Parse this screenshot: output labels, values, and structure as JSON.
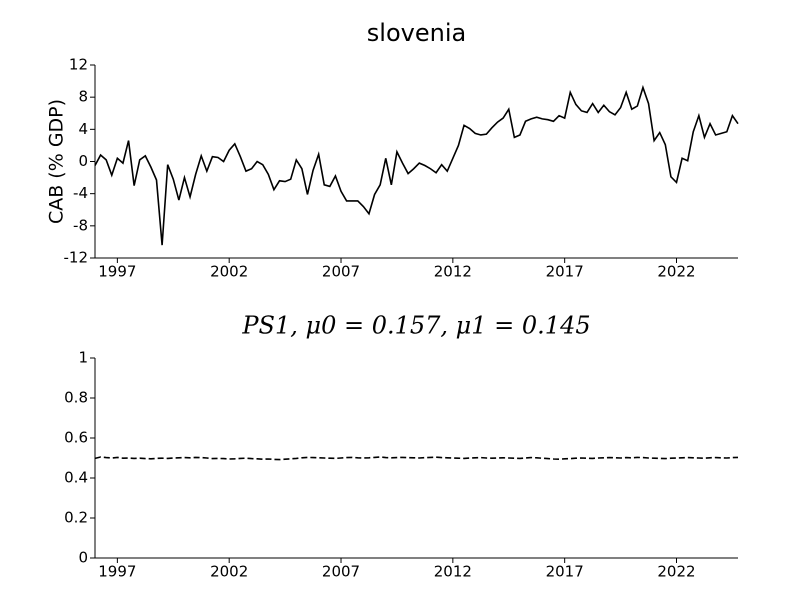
{
  "chart_data": [
    {
      "type": "line",
      "title": "slovenia",
      "ylabel": "CAB (% GDP)",
      "color": "#000000",
      "linestyle": "solid",
      "xlim": [
        1996,
        2024.75
      ],
      "xticks": [
        1997,
        2002,
        2007,
        2012,
        2017,
        2022
      ],
      "ylim": [
        -12,
        12
      ],
      "yticks": [
        -12,
        -8,
        -4,
        0,
        4,
        8,
        12
      ],
      "x": [
        1996,
        1996.25,
        1996.5,
        1996.75,
        1997,
        1997.25,
        1997.5,
        1997.75,
        1998,
        1998.25,
        1998.5,
        1998.75,
        1999,
        1999.25,
        1999.5,
        1999.75,
        2000,
        2000.25,
        2000.5,
        2000.75,
        2001,
        2001.25,
        2001.5,
        2001.75,
        2002,
        2002.25,
        2002.5,
        2002.75,
        2003,
        2003.25,
        2003.5,
        2003.75,
        2004,
        2004.25,
        2004.5,
        2004.75,
        2005,
        2005.25,
        2005.5,
        2005.75,
        2006,
        2006.25,
        2006.5,
        2006.75,
        2007,
        2007.25,
        2007.5,
        2007.75,
        2008,
        2008.25,
        2008.5,
        2008.75,
        2009,
        2009.25,
        2009.5,
        2009.75,
        2010,
        2010.25,
        2010.5,
        2010.75,
        2011,
        2011.25,
        2011.5,
        2011.75,
        2012,
        2012.25,
        2012.5,
        2012.75,
        2013,
        2013.25,
        2013.5,
        2013.75,
        2014,
        2014.25,
        2014.5,
        2014.75,
        2015,
        2015.25,
        2015.5,
        2015.75,
        2016,
        2016.25,
        2016.5,
        2016.75,
        2017,
        2017.25,
        2017.5,
        2017.75,
        2018,
        2018.25,
        2018.5,
        2018.75,
        2019,
        2019.25,
        2019.5,
        2019.75,
        2020,
        2020.25,
        2020.5,
        2020.75,
        2021,
        2021.25,
        2021.5,
        2021.75,
        2022,
        2022.25,
        2022.5,
        2022.75,
        2023,
        2023.25,
        2023.5,
        2023.75,
        2024,
        2024.25,
        2024.5,
        2024.75
      ],
      "values": [
        -0.5,
        0.8,
        0.2,
        -1.7,
        0.4,
        -0.2,
        2.6,
        -3.0,
        0.2,
        0.7,
        -0.7,
        -2.3,
        -10.4,
        -0.4,
        -2.2,
        -4.8,
        -2.0,
        -4.4,
        -1.6,
        0.7,
        -1.2,
        0.6,
        0.5,
        0.0,
        1.4,
        2.2,
        0.6,
        -1.2,
        -0.9,
        0.0,
        -0.4,
        -1.6,
        -3.5,
        -2.4,
        -2.5,
        -2.2,
        0.2,
        -0.9,
        -4.1,
        -1.1,
        0.9,
        -2.9,
        -3.1,
        -1.8,
        -3.7,
        -4.9,
        -4.9,
        -4.9,
        -5.6,
        -6.5,
        -4.1,
        -2.9,
        0.4,
        -2.9,
        1.2,
        -0.2,
        -1.5,
        -0.9,
        -0.2,
        -0.5,
        -0.9,
        -1.4,
        -0.4,
        -1.2,
        0.4,
        2.0,
        4.5,
        4.1,
        3.5,
        3.3,
        3.4,
        4.2,
        4.9,
        5.4,
        6.5,
        3.0,
        3.3,
        5.0,
        5.3,
        5.5,
        5.3,
        5.2,
        5.0,
        5.7,
        5.4,
        8.6,
        7.1,
        6.3,
        6.1,
        7.2,
        6.1,
        7.0,
        6.2,
        5.8,
        6.7,
        8.6,
        6.5,
        6.9,
        9.2,
        7.2,
        2.6,
        3.6,
        2.1,
        -1.9,
        -2.6,
        0.4,
        0.1,
        3.7,
        5.7,
        3.0,
        4.7,
        3.3,
        3.5,
        3.7,
        5.7,
        4.7
      ]
    },
    {
      "type": "line",
      "title": "PS1, μ0 = 0.157, μ1 = 0.145",
      "color": "#000000",
      "linestyle": "dashed",
      "xlim": [
        1996,
        2024.75
      ],
      "xticks": [
        1997,
        2002,
        2007,
        2012,
        2017,
        2022
      ],
      "ylim": [
        0,
        1
      ],
      "yticks": [
        0,
        0.2,
        0.4,
        0.6,
        0.8,
        1
      ],
      "x": [
        1996,
        1996.25,
        1996.5,
        1996.75,
        1997,
        1997.25,
        1997.5,
        1997.75,
        1998,
        1998.25,
        1998.5,
        1998.75,
        1999,
        1999.25,
        1999.5,
        1999.75,
        2000,
        2000.25,
        2000.5,
        2000.75,
        2001,
        2001.25,
        2001.5,
        2001.75,
        2002,
        2002.25,
        2002.5,
        2002.75,
        2003,
        2003.25,
        2003.5,
        2003.75,
        2004,
        2004.25,
        2004.5,
        2004.75,
        2005,
        2005.25,
        2005.5,
        2005.75,
        2006,
        2006.25,
        2006.5,
        2006.75,
        2007,
        2007.25,
        2007.5,
        2007.75,
        2008,
        2008.25,
        2008.5,
        2008.75,
        2009,
        2009.25,
        2009.5,
        2009.75,
        2010,
        2010.25,
        2010.5,
        2010.75,
        2011,
        2011.25,
        2011.5,
        2011.75,
        2012,
        2012.25,
        2012.5,
        2012.75,
        2013,
        2013.25,
        2013.5,
        2013.75,
        2014,
        2014.25,
        2014.5,
        2014.75,
        2015,
        2015.25,
        2015.5,
        2015.75,
        2016,
        2016.25,
        2016.5,
        2016.75,
        2017,
        2017.25,
        2017.5,
        2017.75,
        2018,
        2018.25,
        2018.5,
        2018.75,
        2019,
        2019.25,
        2019.5,
        2019.75,
        2020,
        2020.25,
        2020.5,
        2020.75,
        2021,
        2021.25,
        2021.5,
        2021.75,
        2022,
        2022.25,
        2022.5,
        2022.75,
        2023,
        2023.25,
        2023.5,
        2023.75,
        2024,
        2024.25,
        2024.5,
        2024.75
      ],
      "values": [
        0.498,
        0.505,
        0.502,
        0.5,
        0.503,
        0.499,
        0.5,
        0.498,
        0.499,
        0.497,
        0.496,
        0.498,
        0.499,
        0.498,
        0.5,
        0.501,
        0.502,
        0.501,
        0.503,
        0.502,
        0.5,
        0.497,
        0.498,
        0.497,
        0.495,
        0.496,
        0.498,
        0.499,
        0.497,
        0.496,
        0.494,
        0.495,
        0.493,
        0.492,
        0.494,
        0.496,
        0.498,
        0.501,
        0.503,
        0.502,
        0.501,
        0.5,
        0.499,
        0.498,
        0.5,
        0.502,
        0.503,
        0.501,
        0.5,
        0.501,
        0.503,
        0.505,
        0.502,
        0.501,
        0.502,
        0.503,
        0.502,
        0.501,
        0.5,
        0.502,
        0.503,
        0.504,
        0.502,
        0.501,
        0.5,
        0.499,
        0.498,
        0.5,
        0.501,
        0.502,
        0.5,
        0.499,
        0.5,
        0.501,
        0.5,
        0.499,
        0.498,
        0.5,
        0.502,
        0.501,
        0.499,
        0.497,
        0.495,
        0.494,
        0.496,
        0.497,
        0.499,
        0.5,
        0.499,
        0.498,
        0.5,
        0.501,
        0.502,
        0.501,
        0.5,
        0.502,
        0.501,
        0.503,
        0.502,
        0.5,
        0.499,
        0.498,
        0.497,
        0.499,
        0.5,
        0.501,
        0.502,
        0.501,
        0.5,
        0.499,
        0.501,
        0.502,
        0.501,
        0.5,
        0.502,
        0.503
      ]
    }
  ]
}
